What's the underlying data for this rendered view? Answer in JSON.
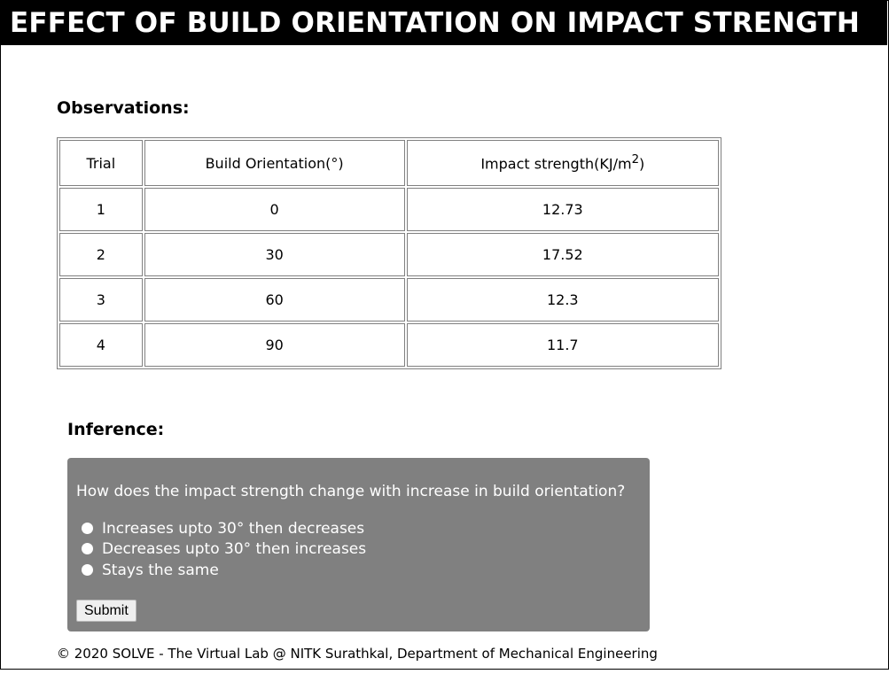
{
  "header": {
    "title": "EFFECT OF BUILD ORIENTATION ON IMPACT STRENGTH"
  },
  "observations": {
    "heading": "Observations:",
    "columns": {
      "trial": "Trial",
      "orientation": "Build Orientation(°)",
      "strength_prefix": "Impact strength(KJ/m",
      "strength_sup": "2",
      "strength_suffix": ")"
    },
    "rows": [
      {
        "trial": "1",
        "orientation": "0",
        "strength": "12.73"
      },
      {
        "trial": "2",
        "orientation": "30",
        "strength": "17.52"
      },
      {
        "trial": "3",
        "orientation": "60",
        "strength": "12.3"
      },
      {
        "trial": "4",
        "orientation": "90",
        "strength": "11.7"
      }
    ]
  },
  "inference": {
    "heading": "Inference:",
    "question": "How does the impact strength change with increase in build orientation?",
    "options": [
      "Increases upto 30° then decreases",
      "Decreases upto 30° then increases",
      "Stays the same"
    ],
    "submit_label": "Submit"
  },
  "footer": {
    "text": "© 2020 SOLVE - The Virtual Lab @ NITK Surathkal, Department of Mechanical Engineering"
  },
  "colors": {
    "title_bar_bg": "#000000",
    "quiz_bg": "#808080",
    "table_border": "#808080"
  }
}
